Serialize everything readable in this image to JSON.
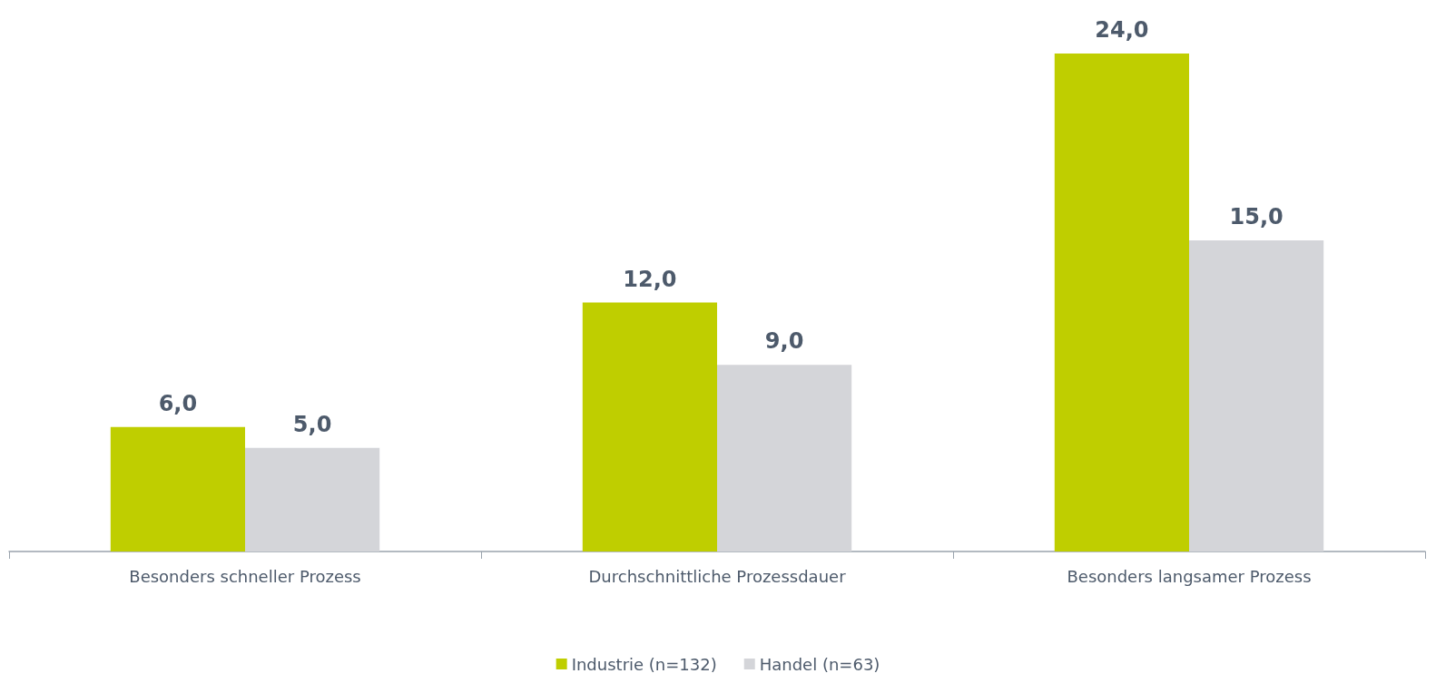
{
  "chart_data": {
    "type": "bar",
    "categories": [
      "Besonders schneller Prozess",
      "Durchschnittliche Prozessdauer",
      "Besonders langsamer Prozess"
    ],
    "series": [
      {
        "name": "Industrie (n=132)",
        "color": "#bfce00",
        "values": [
          6.0,
          12.0,
          24.0
        ],
        "value_labels": [
          "6,0",
          "12,0",
          "24,0"
        ]
      },
      {
        "name": "Handel (n=63)",
        "color": "#d4d5d9",
        "values": [
          5.0,
          9.0,
          15.0
        ],
        "value_labels": [
          "5,0",
          "9,0",
          "15,0"
        ]
      }
    ],
    "legend": "bottom",
    "grid": false
  }
}
